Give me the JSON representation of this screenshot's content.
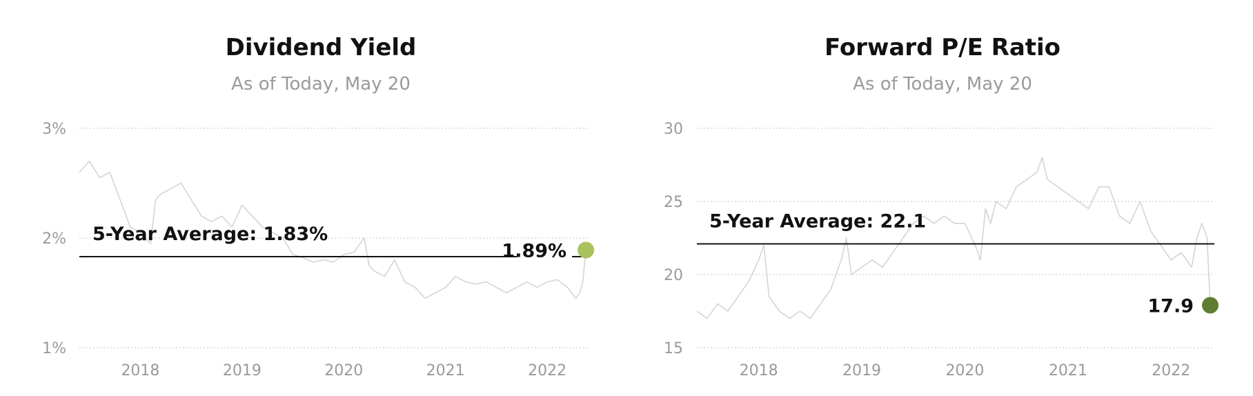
{
  "chart_data": [
    {
      "type": "line",
      "title": "Dividend Yield",
      "subtitle": "As of Today, May 20",
      "y_ticks": [
        1,
        2,
        3
      ],
      "y_tick_labels": [
        "1%",
        "2%",
        "3%"
      ],
      "ylim": [
        1,
        3
      ],
      "xlim": [
        2017.4,
        2022.42
      ],
      "x_ticks": [
        2018,
        2019,
        2020,
        2021,
        2022
      ],
      "x_tick_labels": [
        "2018",
        "2019",
        "2020",
        "2021",
        "2022"
      ],
      "grid": true,
      "average": {
        "label": "5-Year Average: 1.83%",
        "value": 1.83
      },
      "end_point": {
        "label": "1.89%",
        "x": 2022.38,
        "value": 1.89,
        "color": "#a9c25d"
      },
      "series": [
        {
          "x": [
            2017.4,
            2017.5,
            2017.6,
            2017.7,
            2017.8,
            2017.9,
            2018.0,
            2018.1,
            2018.15,
            2018.2,
            2018.3,
            2018.4,
            2018.5,
            2018.6,
            2018.7,
            2018.8,
            2018.9,
            2019.0,
            2019.1,
            2019.2,
            2019.3,
            2019.4,
            2019.5,
            2019.6,
            2019.7,
            2019.8,
            2019.9,
            2020.0,
            2020.1,
            2020.2,
            2020.25,
            2020.3,
            2020.4,
            2020.5,
            2020.6,
            2020.7,
            2020.8,
            2020.9,
            2021.0,
            2021.1,
            2021.2,
            2021.3,
            2021.4,
            2021.5,
            2021.6,
            2021.7,
            2021.8,
            2021.9,
            2022.0,
            2022.1,
            2022.2,
            2022.28,
            2022.32,
            2022.35,
            2022.38
          ],
          "values": [
            2.6,
            2.7,
            2.55,
            2.6,
            2.35,
            2.1,
            2.05,
            1.95,
            2.35,
            2.4,
            2.45,
            2.5,
            2.35,
            2.2,
            2.15,
            2.2,
            2.1,
            2.3,
            2.2,
            2.1,
            2.05,
            2.0,
            1.85,
            1.82,
            1.78,
            1.8,
            1.78,
            1.85,
            1.87,
            2.0,
            1.75,
            1.7,
            1.65,
            1.8,
            1.6,
            1.55,
            1.45,
            1.5,
            1.55,
            1.65,
            1.6,
            1.58,
            1.6,
            1.55,
            1.5,
            1.55,
            1.6,
            1.55,
            1.6,
            1.62,
            1.55,
            1.45,
            1.5,
            1.6,
            1.89
          ]
        }
      ]
    },
    {
      "type": "line",
      "title": "Forward P/E Ratio",
      "subtitle": "As of Today, May 20",
      "y_ticks": [
        15,
        20,
        25,
        30
      ],
      "y_tick_labels": [
        "15",
        "20",
        "25",
        "30"
      ],
      "ylim": [
        15,
        30
      ],
      "xlim": [
        2017.4,
        2022.42
      ],
      "x_ticks": [
        2018,
        2019,
        2020,
        2021,
        2022
      ],
      "x_tick_labels": [
        "2018",
        "2019",
        "2020",
        "2021",
        "2022"
      ],
      "grid": true,
      "average": {
        "label": "5-Year Average: 22.1",
        "value": 22.1
      },
      "end_point": {
        "label": "17.9",
        "x": 2022.38,
        "value": 17.9,
        "color": "#5e7f30"
      },
      "series": [
        {
          "x": [
            2017.4,
            2017.5,
            2017.6,
            2017.7,
            2017.8,
            2017.9,
            2018.0,
            2018.05,
            2018.1,
            2018.2,
            2018.3,
            2018.4,
            2018.5,
            2018.6,
            2018.7,
            2018.8,
            2018.85,
            2018.9,
            2019.0,
            2019.1,
            2019.2,
            2019.3,
            2019.4,
            2019.5,
            2019.6,
            2019.7,
            2019.8,
            2019.9,
            2020.0,
            2020.1,
            2020.15,
            2020.2,
            2020.25,
            2020.3,
            2020.4,
            2020.5,
            2020.6,
            2020.7,
            2020.75,
            2020.8,
            2020.9,
            2021.0,
            2021.1,
            2021.2,
            2021.3,
            2021.4,
            2021.5,
            2021.6,
            2021.7,
            2021.8,
            2021.9,
            2022.0,
            2022.1,
            2022.2,
            2022.25,
            2022.3,
            2022.35,
            2022.38
          ],
          "values": [
            17.5,
            17.0,
            18.0,
            17.5,
            18.5,
            19.5,
            21.0,
            22.0,
            18.5,
            17.5,
            17.0,
            17.5,
            17.0,
            18.0,
            19.0,
            21.0,
            22.5,
            20.0,
            20.5,
            21.0,
            20.5,
            21.5,
            22.5,
            23.5,
            24.0,
            23.5,
            24.0,
            23.5,
            23.5,
            22.0,
            21.0,
            24.5,
            23.5,
            25.0,
            24.5,
            26.0,
            26.5,
            27.0,
            28.0,
            26.5,
            26.0,
            25.5,
            25.0,
            24.5,
            26.0,
            26.0,
            24.0,
            23.5,
            25.0,
            23.0,
            22.0,
            21.0,
            21.5,
            20.5,
            22.5,
            23.5,
            22.5,
            17.9
          ]
        }
      ]
    }
  ]
}
